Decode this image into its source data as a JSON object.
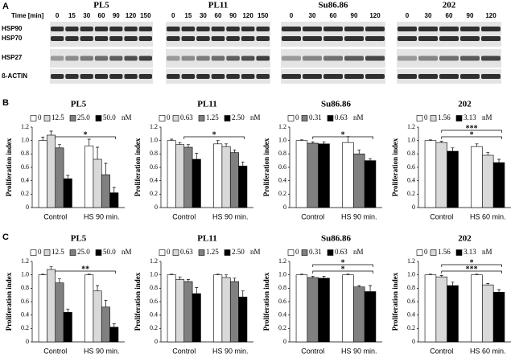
{
  "panel_labels": [
    "A",
    "B",
    "C"
  ],
  "blot_panel": {
    "time_label": "Time [min]",
    "cell_lines": [
      {
        "name": "PL5",
        "times": [
          "0",
          "15",
          "30",
          "60",
          "90",
          "120",
          "150"
        ]
      },
      {
        "name": "PL11",
        "times": [
          "0",
          "15",
          "30",
          "60",
          "90",
          "120",
          "150"
        ]
      },
      {
        "name": "Su86.86",
        "times": [
          "0",
          "30",
          "60",
          "90",
          "120"
        ]
      },
      {
        "name": "202",
        "times": [
          "0",
          "30",
          "60",
          "90",
          "120"
        ]
      }
    ],
    "proteins": [
      "HSP90",
      "HSP70",
      "HSP27",
      "ß-ACTIN"
    ]
  },
  "chart_data": [
    {
      "type": "bar",
      "title": "PL5",
      "ylabel": "Proliferation index",
      "legend_unit": "nM",
      "categories": [
        "Control",
        "HS 90 min."
      ],
      "ylim": [
        0,
        1.2
      ],
      "yticks": [
        0,
        0.2,
        0.4,
        0.6,
        0.8,
        {
          "value": 1,
          "label": "1.0"
        },
        1.2
      ],
      "series": [
        {
          "name": "0",
          "color": "#ffffff",
          "values": [
            1.0,
            0.92
          ],
          "errors": [
            0.05,
            0.1
          ]
        },
        {
          "name": "12.5",
          "color": "#d9d9d9",
          "values": [
            1.08,
            0.72
          ],
          "errors": [
            0.06,
            0.18
          ]
        },
        {
          "name": "25.0",
          "color": "#808080",
          "values": [
            0.89,
            0.49
          ],
          "errors": [
            0.05,
            0.17
          ]
        },
        {
          "name": "50.0",
          "color": "#000000",
          "values": [
            0.43,
            0.22
          ],
          "errors": [
            0.05,
            0.08
          ]
        }
      ],
      "annotations": [
        "*"
      ]
    },
    {
      "type": "bar",
      "title": "PL11",
      "ylabel": "Proliferation index",
      "legend_unit": "nM",
      "categories": [
        "Control",
        "HS 90 min."
      ],
      "ylim": [
        0,
        1.2
      ],
      "yticks": [
        0,
        0.2,
        0.4,
        0.6,
        0.8,
        {
          "value": 1,
          "label": "1.0"
        },
        1.2
      ],
      "series": [
        {
          "name": "0",
          "color": "#ffffff",
          "values": [
            1.0,
            0.95
          ],
          "errors": [
            0.02,
            0.05
          ]
        },
        {
          "name": "0.63",
          "color": "#d9d9d9",
          "values": [
            0.94,
            0.91
          ],
          "errors": [
            0.03,
            0.04
          ]
        },
        {
          "name": "1.25",
          "color": "#808080",
          "values": [
            0.9,
            0.82
          ],
          "errors": [
            0.04,
            0.04
          ]
        },
        {
          "name": "2.50",
          "color": "#000000",
          "values": [
            0.72,
            0.62
          ],
          "errors": [
            0.09,
            0.06
          ]
        }
      ],
      "annotations": [
        "*"
      ]
    },
    {
      "type": "bar",
      "title": "Su86.86",
      "ylabel": "Proliferation index",
      "legend_unit": "nM",
      "categories": [
        "Control",
        "HS 90 min."
      ],
      "ylim": [
        0,
        1.2
      ],
      "yticks": [
        0,
        0.2,
        0.4,
        0.6,
        0.8,
        {
          "value": 1,
          "label": "1.0"
        },
        1.2
      ],
      "series": [
        {
          "name": "0",
          "color": "#ffffff",
          "values": [
            1.0,
            0.97
          ],
          "errors": [
            0.01,
            0.09
          ]
        },
        {
          "name": "0.31",
          "color": "#808080",
          "values": [
            0.96,
            0.8
          ],
          "errors": [
            0.02,
            0.06
          ]
        },
        {
          "name": "0.63",
          "color": "#000000",
          "values": [
            0.95,
            0.7
          ],
          "errors": [
            0.03,
            0.03
          ]
        }
      ],
      "annotations": [
        "*"
      ]
    },
    {
      "type": "bar",
      "title": "202",
      "ylabel": "Proliferation index",
      "legend_unit": "nM",
      "categories": [
        "Control",
        "HS 60 min."
      ],
      "ylim": [
        0,
        1.2
      ],
      "yticks": [
        0,
        0.2,
        0.4,
        0.6,
        0.8,
        {
          "value": 1,
          "label": "1.0"
        },
        1.2
      ],
      "series": [
        {
          "name": "0",
          "color": "#ffffff",
          "values": [
            1.0,
            0.91
          ],
          "errors": [
            0.01,
            0.04
          ]
        },
        {
          "name": "1.56",
          "color": "#d9d9d9",
          "values": [
            0.97,
            0.78
          ],
          "errors": [
            0.02,
            0.04
          ]
        },
        {
          "name": "3.13",
          "color": "#000000",
          "values": [
            0.84,
            0.67
          ],
          "errors": [
            0.05,
            0.05
          ]
        }
      ],
      "annotations": [
        "*",
        "***"
      ]
    },
    {
      "type": "bar",
      "title": "PL5",
      "ylabel": "Proliferation index",
      "legend_unit": "nM",
      "categories": [
        "Control",
        "HS 90 min."
      ],
      "ylim": [
        0,
        1.2
      ],
      "yticks": [
        0,
        0.2,
        0.4,
        0.6,
        0.8,
        {
          "value": 1,
          "label": "1.0"
        },
        1.2
      ],
      "series": [
        {
          "name": "0",
          "color": "#ffffff",
          "values": [
            1.0,
            1.0
          ],
          "errors": [
            0.01,
            0.01
          ]
        },
        {
          "name": "12.5",
          "color": "#d9d9d9",
          "values": [
            1.08,
            0.76
          ],
          "errors": [
            0.04,
            0.08
          ]
        },
        {
          "name": "25.0",
          "color": "#808080",
          "values": [
            0.88,
            0.52
          ],
          "errors": [
            0.06,
            0.1
          ]
        },
        {
          "name": "50.0",
          "color": "#000000",
          "values": [
            0.44,
            0.22
          ],
          "errors": [
            0.05,
            0.05
          ]
        }
      ],
      "annotations": [
        "**"
      ]
    },
    {
      "type": "bar",
      "title": "PL11",
      "ylabel": "Proliferation index",
      "legend_unit": "nM",
      "categories": [
        "Control",
        "HS 90 min."
      ],
      "ylim": [
        0,
        1.2
      ],
      "yticks": [
        0,
        0.2,
        0.4,
        0.6,
        0.8,
        {
          "value": 1,
          "label": "1.0"
        },
        1.2
      ],
      "series": [
        {
          "name": "0",
          "color": "#ffffff",
          "values": [
            1.0,
            1.0
          ],
          "errors": [
            0.01,
            0.01
          ]
        },
        {
          "name": "0.63",
          "color": "#d9d9d9",
          "values": [
            0.93,
            0.96
          ],
          "errors": [
            0.04,
            0.04
          ]
        },
        {
          "name": "1.25",
          "color": "#808080",
          "values": [
            0.9,
            0.9
          ],
          "errors": [
            0.03,
            0.05
          ]
        },
        {
          "name": "2.50",
          "color": "#000000",
          "values": [
            0.72,
            0.67
          ],
          "errors": [
            0.09,
            0.09
          ]
        }
      ],
      "annotations": []
    },
    {
      "type": "bar",
      "title": "Su86.86",
      "ylabel": "Proliferation index",
      "legend_unit": "nM",
      "categories": [
        "Control",
        "HS 90 min."
      ],
      "ylim": [
        0,
        1.2
      ],
      "yticks": [
        0,
        0.2,
        0.4,
        0.6,
        0.8,
        {
          "value": 1,
          "label": "1.0"
        },
        1.2
      ],
      "series": [
        {
          "name": "0",
          "color": "#ffffff",
          "values": [
            1.0,
            1.0
          ],
          "errors": [
            0.01,
            0.01
          ]
        },
        {
          "name": "0.31",
          "color": "#808080",
          "values": [
            0.96,
            0.82
          ],
          "errors": [
            0.02,
            0.02
          ]
        },
        {
          "name": "0.63",
          "color": "#000000",
          "values": [
            0.95,
            0.75
          ],
          "errors": [
            0.03,
            0.09
          ]
        }
      ],
      "annotations": [
        "*",
        "*"
      ]
    },
    {
      "type": "bar",
      "title": "202",
      "ylabel": "Proliferation index",
      "legend_unit": "nM",
      "categories": [
        "Control",
        "HS 60 min."
      ],
      "ylim": [
        0,
        1.2
      ],
      "yticks": [
        0,
        0.2,
        0.4,
        0.6,
        0.8,
        {
          "value": 1,
          "label": "1.0"
        },
        1.2
      ],
      "series": [
        {
          "name": "0",
          "color": "#ffffff",
          "values": [
            1.0,
            1.0
          ],
          "errors": [
            0.01,
            0.01
          ]
        },
        {
          "name": "1.56",
          "color": "#d9d9d9",
          "values": [
            0.97,
            0.85
          ],
          "errors": [
            0.02,
            0.02
          ]
        },
        {
          "name": "3.13",
          "color": "#000000",
          "values": [
            0.84,
            0.74
          ],
          "errors": [
            0.05,
            0.04
          ]
        }
      ],
      "annotations": [
        "***",
        "*"
      ]
    }
  ]
}
